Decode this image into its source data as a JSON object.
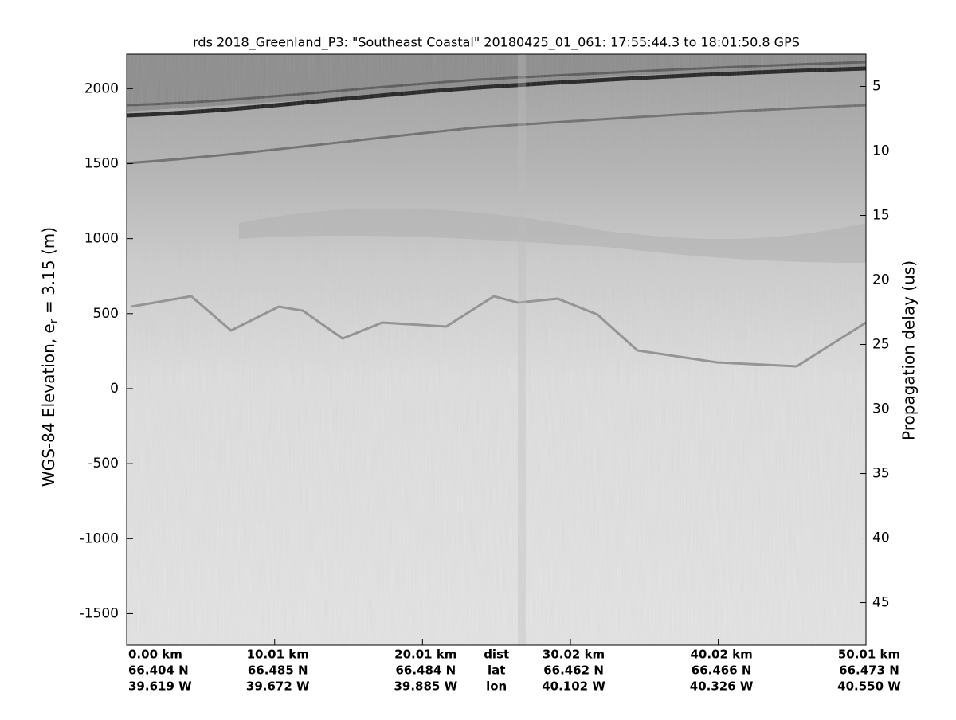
{
  "chart_data": {
    "type": "echogram",
    "title": "rds 2018_Greenland_P3: \"Southeast Coastal\"  20180425_01_061: 17:55:44.3 to 18:01:50.8 GPS",
    "ylabel": {
      "text": "WGS-84 Elevation, e",
      "sub": "r",
      "rest": " = 3.15 (m)"
    },
    "y2label": "Propagation delay (us)",
    "ylim": [
      -1710,
      2230
    ],
    "yticks": [
      -1500,
      -1000,
      -500,
      0,
      500,
      1000,
      1500,
      2000
    ],
    "y2lim": [
      48.3,
      2.5
    ],
    "y2ticks": [
      5,
      10,
      15,
      20,
      25,
      30,
      35,
      40,
      45
    ],
    "xlim": [
      0,
      50.01
    ],
    "xticks": [
      {
        "value": 0,
        "label": "0.00 km"
      },
      {
        "value": 10.01,
        "label": "10.01 km"
      },
      {
        "value": 20.01,
        "label": "20.01 km"
      },
      {
        "value": 30.02,
        "label": "30.02 km"
      },
      {
        "value": 40.02,
        "label": "40.02 km"
      },
      {
        "value": 50.01,
        "label": "50.01 km"
      }
    ],
    "row_names": [
      "dist",
      "lat",
      "lon"
    ],
    "lat": [
      "66.404 N",
      "66.485 N",
      "66.484 N",
      "66.462 N",
      "66.466 N",
      "66.473 N"
    ],
    "lon": [
      "39.619 W",
      "39.672 W",
      "39.885 W",
      "40.102 W",
      "40.326 W",
      "40.550 W"
    ]
  }
}
